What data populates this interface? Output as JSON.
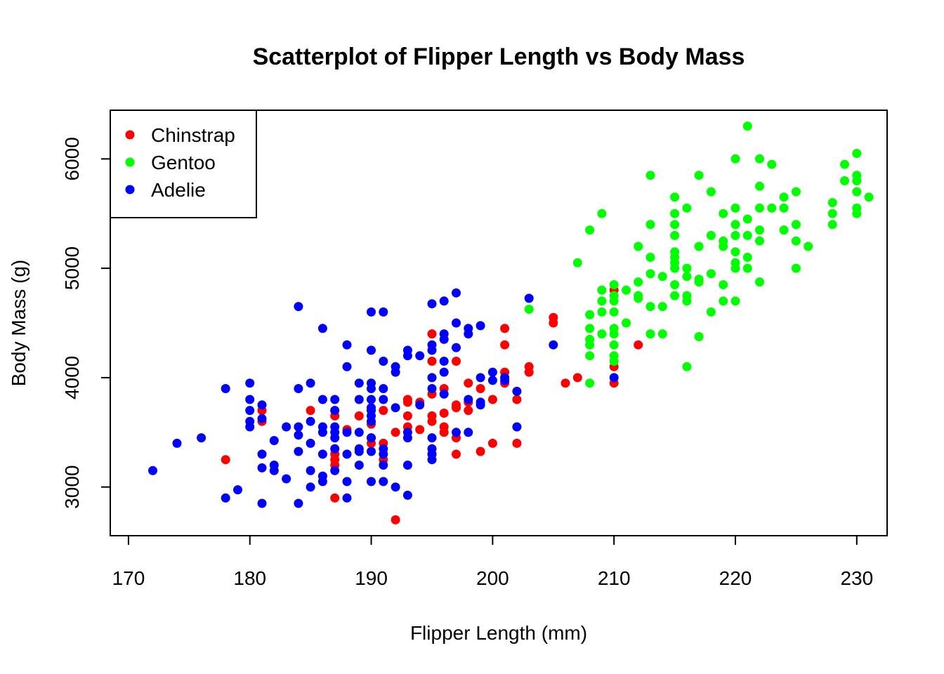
{
  "chart_data": {
    "type": "scatter",
    "title": "Scatterplot of Flipper Length vs Body Mass",
    "xlabel": "Flipper Length (mm)",
    "ylabel": "Body Mass (g)",
    "xlim": [
      168.5,
      232.5
    ],
    "ylim": [
      2555,
      6445
    ],
    "xticks": [
      170,
      180,
      190,
      200,
      210,
      220,
      230
    ],
    "yticks": [
      3000,
      4000,
      5000,
      6000
    ],
    "xtick_labels": [
      "170",
      "180",
      "190",
      "200",
      "210",
      "220",
      "230"
    ],
    "ytick_labels": [
      "3000",
      "4000",
      "5000",
      "6000"
    ],
    "grid": false,
    "legend_position": "top-left",
    "series": [
      {
        "name": "Chinstrap",
        "color": "#ff0000",
        "points": [
          [
            178,
            3250
          ],
          [
            181,
            3600
          ],
          [
            181,
            3700
          ],
          [
            185,
            3700
          ],
          [
            187,
            2900
          ],
          [
            187,
            3200
          ],
          [
            187,
            3250
          ],
          [
            187,
            3300
          ],
          [
            187,
            3350
          ],
          [
            187,
            3650
          ],
          [
            188,
            3525
          ],
          [
            189,
            3650
          ],
          [
            190,
            3400
          ],
          [
            190,
            3450
          ],
          [
            190,
            3575
          ],
          [
            191,
            3250
          ],
          [
            191,
            3400
          ],
          [
            191,
            3700
          ],
          [
            192,
            2700
          ],
          [
            192,
            3500
          ],
          [
            193,
            3550
          ],
          [
            193,
            3650
          ],
          [
            193,
            3775
          ],
          [
            193,
            3800
          ],
          [
            194,
            3525
          ],
          [
            194,
            3775
          ],
          [
            195,
            3300
          ],
          [
            195,
            3600
          ],
          [
            195,
            3650
          ],
          [
            195,
            3850
          ],
          [
            195,
            4150
          ],
          [
            195,
            4400
          ],
          [
            196,
            3500
          ],
          [
            196,
            3550
          ],
          [
            196,
            3675
          ],
          [
            196,
            3900
          ],
          [
            197,
            3300
          ],
          [
            197,
            3450
          ],
          [
            197,
            3725
          ],
          [
            197,
            3750
          ],
          [
            197,
            4150
          ],
          [
            198,
            3700
          ],
          [
            198,
            3775
          ],
          [
            198,
            3950
          ],
          [
            199,
            3325
          ],
          [
            199,
            3900
          ],
          [
            200,
            3400
          ],
          [
            200,
            3800
          ],
          [
            201,
            3950
          ],
          [
            201,
            4050
          ],
          [
            201,
            4300
          ],
          [
            201,
            4450
          ],
          [
            202,
            3400
          ],
          [
            202,
            3800
          ],
          [
            203,
            4050
          ],
          [
            203,
            4100
          ],
          [
            205,
            4500
          ],
          [
            205,
            4550
          ],
          [
            206,
            3950
          ],
          [
            207,
            4000
          ],
          [
            210,
            3950
          ],
          [
            210,
            4100
          ],
          [
            210,
            4800
          ],
          [
            212,
            4300
          ]
        ]
      },
      {
        "name": "Gentoo",
        "color": "#00ff00",
        "points": [
          [
            203,
            4625
          ],
          [
            207,
            5050
          ],
          [
            208,
            3950
          ],
          [
            208,
            4200
          ],
          [
            208,
            4300
          ],
          [
            208,
            4350
          ],
          [
            208,
            4450
          ],
          [
            208,
            4575
          ],
          [
            208,
            5350
          ],
          [
            209,
            4400
          ],
          [
            209,
            4600
          ],
          [
            209,
            4700
          ],
          [
            209,
            4800
          ],
          [
            209,
            5500
          ],
          [
            210,
            4150
          ],
          [
            210,
            4200
          ],
          [
            210,
            4300
          ],
          [
            210,
            4400
          ],
          [
            210,
            4450
          ],
          [
            210,
            4600
          ],
          [
            210,
            4700
          ],
          [
            210,
            4750
          ],
          [
            210,
            4850
          ],
          [
            211,
            4500
          ],
          [
            211,
            4800
          ],
          [
            212,
            4725
          ],
          [
            212,
            4750
          ],
          [
            212,
            4875
          ],
          [
            212,
            5200
          ],
          [
            213,
            4400
          ],
          [
            213,
            4650
          ],
          [
            213,
            4950
          ],
          [
            213,
            5100
          ],
          [
            213,
            5400
          ],
          [
            213,
            5850
          ],
          [
            214,
            4400
          ],
          [
            214,
            4650
          ],
          [
            214,
            4925
          ],
          [
            215,
            4750
          ],
          [
            215,
            4850
          ],
          [
            215,
            5000
          ],
          [
            215,
            5050
          ],
          [
            215,
            5100
          ],
          [
            215,
            5150
          ],
          [
            215,
            5300
          ],
          [
            215,
            5400
          ],
          [
            215,
            5500
          ],
          [
            215,
            5650
          ],
          [
            216,
            4100
          ],
          [
            216,
            4700
          ],
          [
            216,
            4750
          ],
          [
            216,
            4925
          ],
          [
            216,
            5000
          ],
          [
            216,
            5550
          ],
          [
            217,
            4375
          ],
          [
            217,
            4875
          ],
          [
            217,
            4900
          ],
          [
            217,
            5200
          ],
          [
            217,
            5850
          ],
          [
            218,
            4600
          ],
          [
            218,
            4950
          ],
          [
            218,
            5300
          ],
          [
            218,
            5700
          ],
          [
            219,
            4700
          ],
          [
            219,
            4850
          ],
          [
            219,
            5200
          ],
          [
            219,
            5250
          ],
          [
            219,
            5500
          ],
          [
            220,
            4700
          ],
          [
            220,
            5000
          ],
          [
            220,
            5050
          ],
          [
            220,
            5150
          ],
          [
            220,
            5300
          ],
          [
            220,
            5400
          ],
          [
            220,
            5550
          ],
          [
            220,
            6000
          ],
          [
            221,
            5000
          ],
          [
            221,
            5100
          ],
          [
            221,
            5300
          ],
          [
            221,
            5450
          ],
          [
            221,
            6300
          ],
          [
            222,
            4875
          ],
          [
            222,
            5250
          ],
          [
            222,
            5350
          ],
          [
            222,
            5550
          ],
          [
            222,
            5750
          ],
          [
            222,
            6000
          ],
          [
            223,
            5550
          ],
          [
            223,
            5950
          ],
          [
            224,
            5350
          ],
          [
            224,
            5550
          ],
          [
            224,
            5650
          ],
          [
            225,
            5000
          ],
          [
            225,
            5250
          ],
          [
            225,
            5400
          ],
          [
            225,
            5700
          ],
          [
            226,
            5200
          ],
          [
            228,
            5400
          ],
          [
            228,
            5500
          ],
          [
            228,
            5600
          ],
          [
            229,
            5800
          ],
          [
            229,
            5950
          ],
          [
            230,
            5500
          ],
          [
            230,
            5550
          ],
          [
            230,
            5700
          ],
          [
            230,
            5800
          ],
          [
            230,
            5850
          ],
          [
            230,
            6050
          ],
          [
            231,
            5650
          ]
        ]
      },
      {
        "name": "Adelie",
        "color": "#0000ff",
        "points": [
          [
            172,
            3150
          ],
          [
            174,
            3400
          ],
          [
            176,
            3450
          ],
          [
            178,
            2900
          ],
          [
            178,
            3900
          ],
          [
            179,
            2975
          ],
          [
            180,
            3550
          ],
          [
            180,
            3600
          ],
          [
            180,
            3700
          ],
          [
            180,
            3800
          ],
          [
            180,
            3950
          ],
          [
            181,
            2850
          ],
          [
            181,
            3175
          ],
          [
            181,
            3300
          ],
          [
            181,
            3625
          ],
          [
            181,
            3750
          ],
          [
            182,
            3150
          ],
          [
            182,
            3200
          ],
          [
            182,
            3425
          ],
          [
            183,
            3075
          ],
          [
            183,
            3550
          ],
          [
            184,
            2850
          ],
          [
            184,
            3325
          ],
          [
            184,
            3475
          ],
          [
            184,
            3550
          ],
          [
            184,
            3900
          ],
          [
            184,
            4650
          ],
          [
            185,
            3000
          ],
          [
            185,
            3150
          ],
          [
            185,
            3400
          ],
          [
            185,
            3600
          ],
          [
            185,
            3950
          ],
          [
            186,
            3050
          ],
          [
            186,
            3100
          ],
          [
            186,
            3300
          ],
          [
            186,
            3500
          ],
          [
            186,
            3550
          ],
          [
            186,
            3800
          ],
          [
            186,
            4450
          ],
          [
            187,
            3150
          ],
          [
            187,
            3350
          ],
          [
            187,
            3450
          ],
          [
            187,
            3500
          ],
          [
            187,
            3550
          ],
          [
            187,
            3700
          ],
          [
            187,
            3800
          ],
          [
            188,
            2900
          ],
          [
            188,
            3050
          ],
          [
            188,
            3300
          ],
          [
            188,
            3500
          ],
          [
            188,
            4100
          ],
          [
            188,
            4300
          ],
          [
            189,
            3200
          ],
          [
            189,
            3325
          ],
          [
            189,
            3350
          ],
          [
            189,
            3500
          ],
          [
            189,
            3800
          ],
          [
            189,
            3950
          ],
          [
            190,
            3050
          ],
          [
            190,
            3325
          ],
          [
            190,
            3450
          ],
          [
            190,
            3600
          ],
          [
            190,
            3650
          ],
          [
            190,
            3700
          ],
          [
            190,
            3725
          ],
          [
            190,
            3800
          ],
          [
            190,
            3900
          ],
          [
            190,
            3950
          ],
          [
            190,
            4250
          ],
          [
            190,
            4600
          ],
          [
            191,
            3050
          ],
          [
            191,
            3200
          ],
          [
            191,
            3300
          ],
          [
            191,
            3350
          ],
          [
            191,
            3800
          ],
          [
            191,
            3900
          ],
          [
            191,
            4150
          ],
          [
            191,
            4600
          ],
          [
            192,
            3000
          ],
          [
            192,
            3725
          ],
          [
            192,
            4050
          ],
          [
            192,
            4100
          ],
          [
            193,
            2925
          ],
          [
            193,
            3200
          ],
          [
            193,
            3450
          ],
          [
            193,
            3500
          ],
          [
            193,
            4200
          ],
          [
            193,
            4250
          ],
          [
            194,
            3750
          ],
          [
            194,
            4200
          ],
          [
            195,
            3250
          ],
          [
            195,
            3300
          ],
          [
            195,
            3350
          ],
          [
            195,
            3450
          ],
          [
            195,
            3900
          ],
          [
            195,
            4000
          ],
          [
            195,
            4250
          ],
          [
            195,
            4300
          ],
          [
            195,
            4675
          ],
          [
            196,
            3850
          ],
          [
            196,
            4050
          ],
          [
            196,
            4150
          ],
          [
            196,
            4350
          ],
          [
            196,
            4400
          ],
          [
            196,
            4700
          ],
          [
            197,
            3500
          ],
          [
            197,
            4275
          ],
          [
            197,
            4500
          ],
          [
            197,
            4775
          ],
          [
            198,
            3500
          ],
          [
            198,
            3800
          ],
          [
            198,
            4400
          ],
          [
            198,
            4450
          ],
          [
            199,
            3750
          ],
          [
            199,
            3775
          ],
          [
            199,
            4000
          ],
          [
            199,
            4475
          ],
          [
            200,
            3975
          ],
          [
            200,
            4050
          ],
          [
            201,
            3975
          ],
          [
            201,
            4000
          ],
          [
            202,
            3550
          ],
          [
            202,
            3875
          ],
          [
            203,
            4725
          ],
          [
            205,
            4300
          ],
          [
            210,
            4000
          ]
        ]
      }
    ]
  }
}
